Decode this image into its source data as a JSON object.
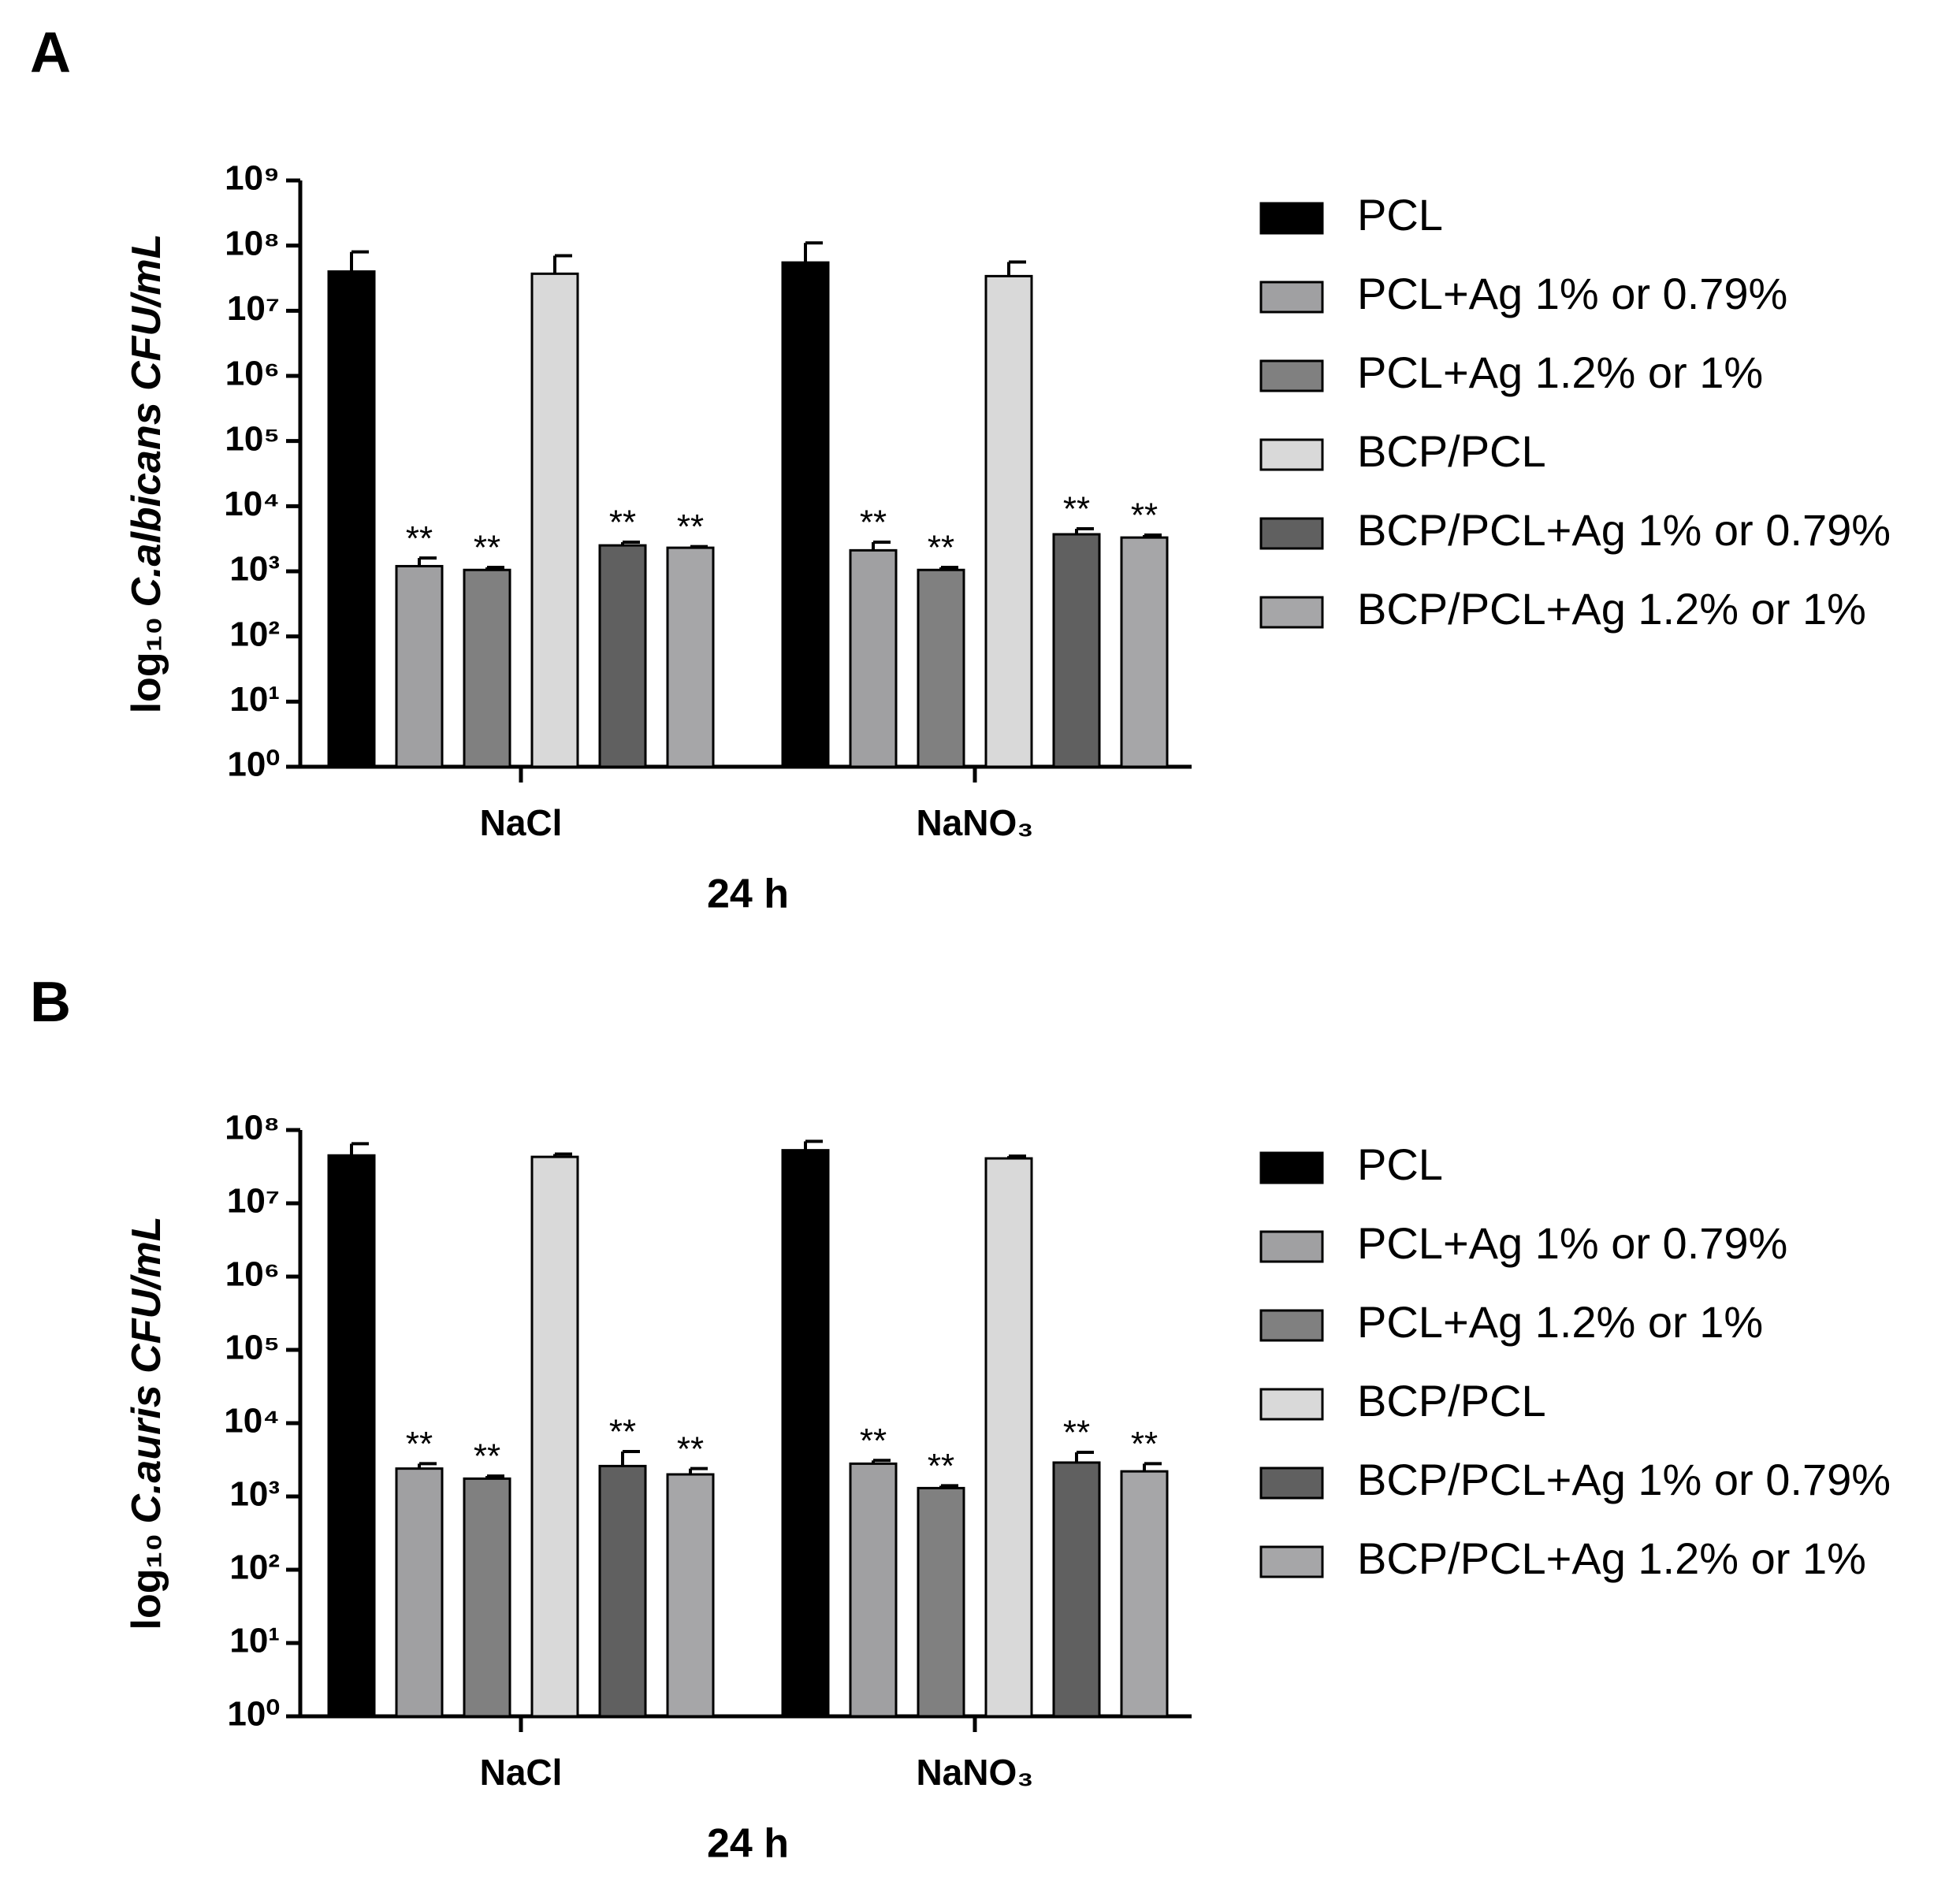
{
  "chart_data": [
    {
      "type": "bar",
      "panel": "A",
      "yscale": "log",
      "grid": false,
      "ylabel": [
        "log₁₀",
        "C.albicans CFU/mL"
      ],
      "xlabel": "24 h",
      "categories": [
        "NaCl",
        "NaNO₃"
      ],
      "ylim": [
        1,
        1000000000
      ],
      "yticks": [
        {
          "value": 1,
          "label": "10⁰"
        },
        {
          "value": 10,
          "label": "10¹"
        },
        {
          "value": 100,
          "label": "10²"
        },
        {
          "value": 1000,
          "label": "10³"
        },
        {
          "value": 10000,
          "label": "10⁴"
        },
        {
          "value": 100000,
          "label": "10⁵"
        },
        {
          "value": 1000000,
          "label": "10⁶"
        },
        {
          "value": 10000000,
          "label": "10⁷"
        },
        {
          "value": 100000000,
          "label": "10⁸"
        },
        {
          "value": 1000000000,
          "label": "10⁹"
        }
      ],
      "series": [
        {
          "name": "PCL",
          "color": "#000000",
          "values": [
            40000000,
            55000000
          ],
          "errors": [
            40000000,
            55000000
          ],
          "annotations": [
            null,
            null
          ]
        },
        {
          "name": "PCL+Ag 1% or 0.79%",
          "color": "#a0a0a2",
          "values": [
            1200,
            2100
          ],
          "errors": [
            400,
            700
          ],
          "annotations": [
            "**",
            "**"
          ]
        },
        {
          "name": "PCL+Ag 1.2% or 1%",
          "color": "#808080",
          "values": [
            1050,
            1050
          ],
          "errors": [
            100,
            100
          ],
          "annotations": [
            "**",
            "**"
          ]
        },
        {
          "name": "BCP/PCL",
          "color": "#d9d9d9",
          "values": [
            37000000,
            34000000
          ],
          "errors": [
            33000000,
            22000000
          ],
          "annotations": [
            null,
            null
          ]
        },
        {
          "name": "BCP/PCL+Ag 1% or 0.79%",
          "color": "#606060",
          "values": [
            2500,
            3700
          ],
          "errors": [
            300,
            800
          ],
          "annotations": [
            "**",
            "**"
          ]
        },
        {
          "name": "BCP/PCL+Ag 1.2% or 1%",
          "color": "#a6a6a8",
          "values": [
            2300,
            3300
          ],
          "errors": [
            100,
            300
          ],
          "annotations": [
            "**",
            "**"
          ]
        }
      ]
    },
    {
      "type": "bar",
      "panel": "B",
      "yscale": "log",
      "grid": false,
      "ylabel": [
        "log₁₀",
        "C.auris CFU/mL"
      ],
      "xlabel": "24 h",
      "categories": [
        "NaCl",
        "NaNO₃"
      ],
      "ylim": [
        1,
        100000000
      ],
      "yticks": [
        {
          "value": 1,
          "label": "10⁰"
        },
        {
          "value": 10,
          "label": "10¹"
        },
        {
          "value": 100,
          "label": "10²"
        },
        {
          "value": 1000,
          "label": "10³"
        },
        {
          "value": 10000,
          "label": "10⁴"
        },
        {
          "value": 100000,
          "label": "10⁵"
        },
        {
          "value": 1000000,
          "label": "10⁶"
        },
        {
          "value": 10000000,
          "label": "10⁷"
        },
        {
          "value": 100000000,
          "label": "10⁸"
        }
      ],
      "series": [
        {
          "name": "PCL",
          "color": "#000000",
          "values": [
            45000000,
            53000000
          ],
          "errors": [
            20000000,
            17000000
          ],
          "annotations": [
            null,
            null
          ]
        },
        {
          "name": "PCL+Ag 1% or 0.79%",
          "color": "#a0a0a2",
          "values": [
            2400,
            2800
          ],
          "errors": [
            400,
            300
          ],
          "annotations": [
            "**",
            "**"
          ]
        },
        {
          "name": "PCL+Ag 1.2% or 1%",
          "color": "#808080",
          "values": [
            1750,
            1300
          ],
          "errors": [
            150,
            100
          ],
          "annotations": [
            "**",
            "**"
          ]
        },
        {
          "name": "BCP/PCL",
          "color": "#d9d9d9",
          "values": [
            43000000,
            41000000
          ],
          "errors": [
            4000000,
            3000000
          ],
          "annotations": [
            null,
            null
          ]
        },
        {
          "name": "BCP/PCL+Ag 1% or 0.79%",
          "color": "#606060",
          "values": [
            2600,
            2900
          ],
          "errors": [
            1500,
            1100
          ],
          "annotations": [
            "**",
            "**"
          ]
        },
        {
          "name": "BCP/PCL+Ag 1.2% or 1%",
          "color": "#a6a6a8",
          "values": [
            2000,
            2200
          ],
          "errors": [
            400,
            600
          ],
          "annotations": [
            "**",
            "**"
          ]
        }
      ]
    }
  ]
}
